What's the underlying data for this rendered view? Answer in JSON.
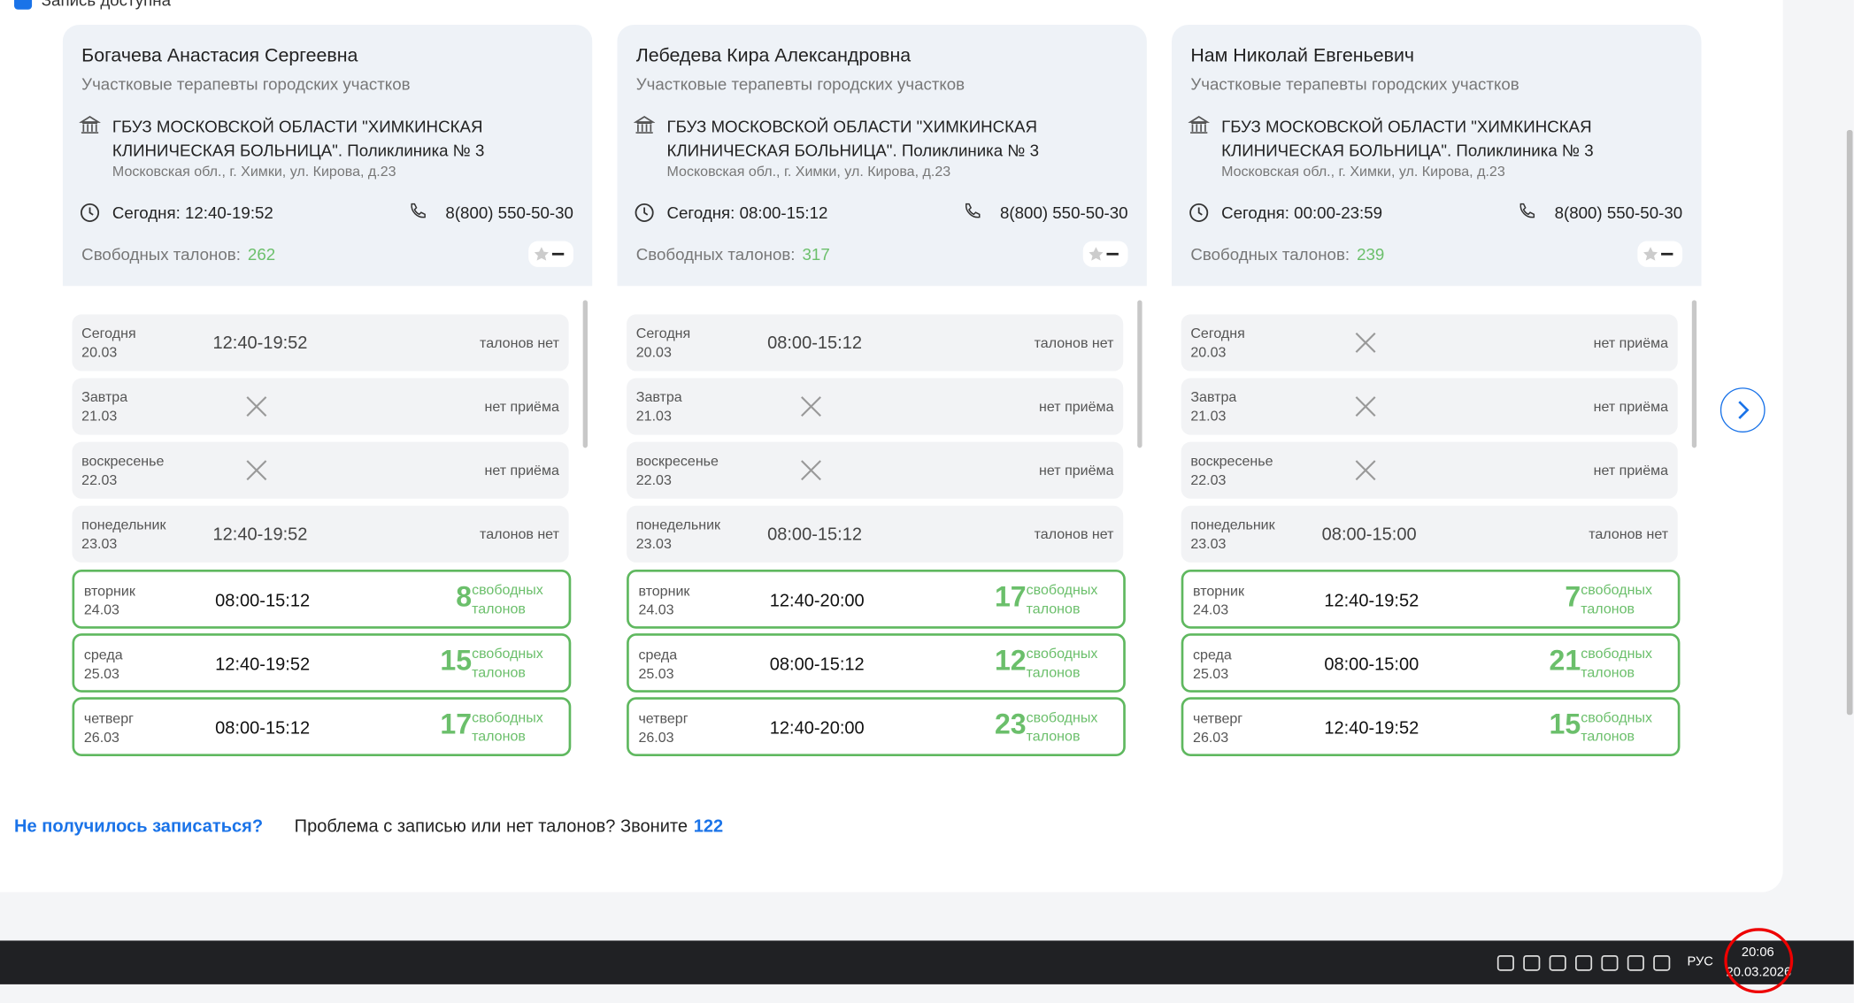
{
  "filter": {
    "label": "Запись доступна"
  },
  "cards": [
    {
      "name": "Богачева Анастасия Сергеевна",
      "specialty": "Участковые терапевты городских участков",
      "org": "ГБУЗ МОСКОВСКОЙ ОБЛАСТИ \"ХИМКИНСКАЯ КЛИНИЧЕСКАЯ БОЛЬНИЦА\". Поликлиника № 3",
      "address": "Московская обл., г. Химки, ул. Кирова, д.23",
      "hours": "Сегодня: 12:40-19:52",
      "phone": "8(800) 550-50-30",
      "free_label": "Свободных талонов:",
      "free": 262,
      "days": [
        {
          "day": "Сегодня",
          "date": "20.03",
          "time": "12:40-19:52",
          "status": "талонов нет"
        },
        {
          "day": "Завтра",
          "date": "21.03",
          "time": null,
          "status": "нет приёма"
        },
        {
          "day": "воскресенье",
          "date": "22.03",
          "time": null,
          "status": "нет приёма"
        },
        {
          "day": "понедельник",
          "date": "23.03",
          "time": "12:40-19:52",
          "status": "талонов нет"
        },
        {
          "day": "вторник",
          "date": "24.03",
          "time": "08:00-15:12",
          "count": 8,
          "count_label": "свободных талонов"
        },
        {
          "day": "среда",
          "date": "25.03",
          "time": "12:40-19:52",
          "count": 15,
          "count_label": "свободных талонов"
        },
        {
          "day": "четверг",
          "date": "26.03",
          "time": "08:00-15:12",
          "count": 17,
          "count_label": "свободных талонов"
        }
      ]
    },
    {
      "name": "Лебедева Кира Александровна",
      "specialty": "Участковые терапевты городских участков",
      "org": "ГБУЗ МОСКОВСКОЙ ОБЛАСТИ \"ХИМКИНСКАЯ КЛИНИЧЕСКАЯ БОЛЬНИЦА\". Поликлиника № 3",
      "address": "Московская обл., г. Химки, ул. Кирова, д.23",
      "hours": "Сегодня: 08:00-15:12",
      "phone": "8(800) 550-50-30",
      "free_label": "Свободных талонов:",
      "free": 317,
      "days": [
        {
          "day": "Сегодня",
          "date": "20.03",
          "time": "08:00-15:12",
          "status": "талонов нет"
        },
        {
          "day": "Завтра",
          "date": "21.03",
          "time": null,
          "status": "нет приёма"
        },
        {
          "day": "воскресенье",
          "date": "22.03",
          "time": null,
          "status": "нет приёма"
        },
        {
          "day": "понедельник",
          "date": "23.03",
          "time": "08:00-15:12",
          "status": "талонов нет"
        },
        {
          "day": "вторник",
          "date": "24.03",
          "time": "12:40-20:00",
          "count": 17,
          "count_label": "свободных талонов"
        },
        {
          "day": "среда",
          "date": "25.03",
          "time": "08:00-15:12",
          "count": 12,
          "count_label": "свободных талонов"
        },
        {
          "day": "четверг",
          "date": "26.03",
          "time": "12:40-20:00",
          "count": 23,
          "count_label": "свободных талонов"
        }
      ]
    },
    {
      "name": "Нам Николай Евгеньевич",
      "specialty": "Участковые терапевты городских участков",
      "org": "ГБУЗ МОСКОВСКОЙ ОБЛАСТИ \"ХИМКИНСКАЯ КЛИНИЧЕСКАЯ БОЛЬНИЦА\". Поликлиника № 3",
      "address": "Московская обл., г. Химки, ул. Кирова, д.23",
      "hours": "Сегодня: 00:00-23:59",
      "phone": "8(800) 550-50-30",
      "free_label": "Свободных талонов:",
      "free": 239,
      "days": [
        {
          "day": "Сегодня",
          "date": "20.03",
          "time": null,
          "status": "нет приёма"
        },
        {
          "day": "Завтра",
          "date": "21.03",
          "time": null,
          "status": "нет приёма"
        },
        {
          "day": "воскресенье",
          "date": "22.03",
          "time": null,
          "status": "нет приёма"
        },
        {
          "day": "понедельник",
          "date": "23.03",
          "time": "08:00-15:00",
          "status": "талонов нет"
        },
        {
          "day": "вторник",
          "date": "24.03",
          "time": "12:40-19:52",
          "count": 7,
          "count_label": "свободных талонов"
        },
        {
          "day": "среда",
          "date": "25.03",
          "time": "08:00-15:00",
          "count": 21,
          "count_label": "свободных талонов"
        },
        {
          "day": "четверг",
          "date": "26.03",
          "time": "12:40-19:52",
          "count": 15,
          "count_label": "свободных талонов"
        }
      ]
    }
  ],
  "footer": {
    "link": "Не получилось записаться?",
    "text": "Проблема с записью или нет талонов? Звоните",
    "phone": "122"
  },
  "taskbar": {
    "language": "РУС",
    "time": "20:06",
    "date": "20.03.2026"
  }
}
